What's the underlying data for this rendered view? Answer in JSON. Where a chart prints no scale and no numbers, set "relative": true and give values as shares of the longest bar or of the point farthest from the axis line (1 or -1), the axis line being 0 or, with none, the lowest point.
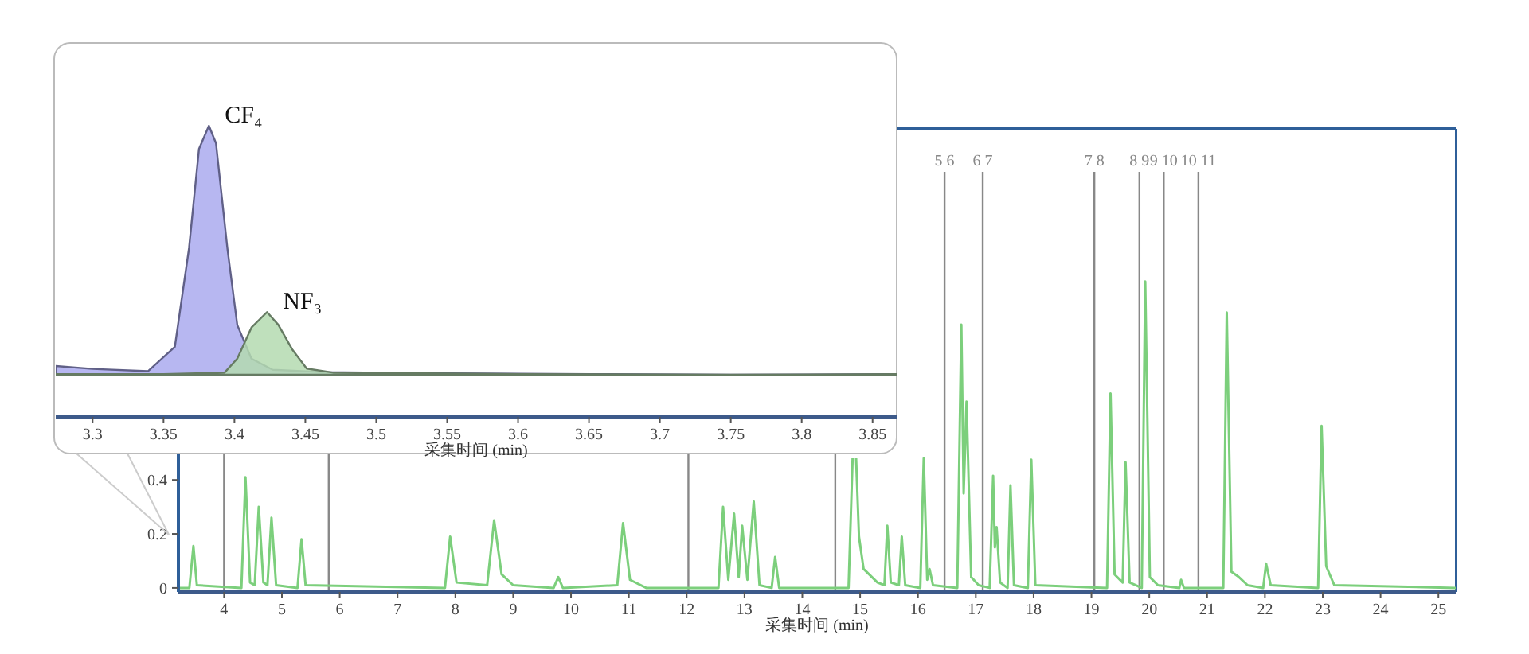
{
  "chart_data": [
    {
      "type": "area",
      "relative": true,
      "xlabel": "采集时间 (min)",
      "xlim": [
        3.274,
        3.867
      ],
      "xticks": [
        3.3,
        3.35,
        3.4,
        3.45,
        3.5,
        3.55,
        3.6,
        3.65,
        3.7,
        3.75,
        3.8,
        3.85
      ],
      "series": [
        {
          "name": "CF₄",
          "color": "#aaaaee",
          "x": [
            3.274,
            3.3,
            3.339,
            3.358,
            3.368,
            3.375,
            3.382,
            3.387,
            3.395,
            3.402,
            3.412,
            3.427,
            3.462,
            3.55,
            3.65,
            3.75,
            3.867
          ],
          "values": [
            0.175,
            0.165,
            0.157,
            0.241,
            0.58,
            0.92,
            1,
            0.94,
            0.58,
            0.316,
            0.2,
            0.162,
            0.154,
            0.15,
            0.147,
            0.145,
            0.147
          ]
        },
        {
          "name": "NF₃",
          "color": "#b4dab0",
          "x": [
            3.274,
            3.35,
            3.393,
            3.402,
            3.412,
            3.423,
            3.431,
            3.441,
            3.451,
            3.47,
            3.6,
            3.75,
            3.867
          ],
          "values": [
            0.147,
            0.147,
            0.152,
            0.2,
            0.307,
            0.36,
            0.316,
            0.23,
            0.166,
            0.152,
            0.147,
            0.145,
            0.147
          ]
        }
      ]
    },
    {
      "type": "line",
      "xlabel": "采集时间 (min)",
      "xlim": [
        3.21,
        25.3
      ],
      "xticks": [
        4,
        5,
        6,
        7,
        8,
        9,
        10,
        11,
        12,
        13,
        14,
        15,
        16,
        17,
        18,
        19,
        20,
        21,
        22,
        23,
        24,
        25
      ],
      "ylim": [
        -0.015,
        1.7
      ],
      "yticks": [
        0,
        0.2,
        0.4
      ],
      "annotations": [
        "5 6",
        "6 7",
        "7 8",
        "8 9",
        "9 10",
        "10 11"
      ],
      "ref_lines": [
        {
          "axis": "x",
          "value": 4.0,
          "label": null
        },
        {
          "axis": "x",
          "value": 5.81,
          "label": null
        },
        {
          "axis": "x",
          "value": 12.03,
          "label": null
        },
        {
          "axis": "x",
          "value": 14.57,
          "label": null
        },
        {
          "axis": "x",
          "value": 16.46
        },
        {
          "axis": "x",
          "value": 17.12
        },
        {
          "axis": "x",
          "value": 19.05
        },
        {
          "axis": "x",
          "value": 19.83
        },
        {
          "axis": "x",
          "value": 20.25
        },
        {
          "axis": "x",
          "value": 20.85
        }
      ],
      "series": [
        {
          "color": "#7ccf7c",
          "x": [
            3.21,
            3.4,
            3.47,
            3.53,
            4.3,
            4.37,
            4.45,
            4.53,
            4.6,
            4.68,
            4.75,
            4.82,
            4.9,
            5.27,
            5.34,
            5.41,
            7.82,
            7.91,
            8.02,
            8.55,
            8.67,
            8.8,
            9.0,
            9.7,
            9.78,
            9.86,
            10.8,
            10.9,
            11.02,
            11.3,
            12.55,
            12.63,
            12.72,
            12.82,
            12.9,
            12.96,
            13.05,
            13.16,
            13.26,
            13.47,
            13.53,
            13.6,
            14.8,
            14.87,
            14.9,
            14.93,
            14.98,
            15.06,
            15.3,
            15.42,
            15.47,
            15.53,
            15.67,
            15.72,
            15.78,
            16.04,
            16.1,
            16.16,
            16.2,
            16.26,
            16.68,
            16.75,
            16.79,
            16.84,
            16.92,
            17.05,
            17.24,
            17.3,
            17.33,
            17.36,
            17.42,
            17.55,
            17.6,
            17.66,
            17.9,
            17.96,
            18.03,
            19.27,
            19.33,
            19.4,
            19.54,
            19.59,
            19.66,
            19.87,
            19.93,
            20.01,
            20.15,
            20.52,
            20.55,
            20.6,
            21.28,
            21.34,
            21.42,
            21.55,
            21.7,
            21.97,
            22.02,
            22.1,
            22.92,
            22.98,
            23.06,
            23.2,
            25.3
          ],
          "values": [
            0,
            0,
            0.155,
            0.01,
            0,
            0.41,
            0.02,
            0.01,
            0.3,
            0.02,
            0.01,
            0.26,
            0.01,
            0,
            0.18,
            0.01,
            0,
            0.19,
            0.02,
            0.01,
            0.25,
            0.05,
            0.01,
            0,
            0.04,
            0,
            0.01,
            0.24,
            0.03,
            0,
            0,
            0.3,
            0.03,
            0.275,
            0.04,
            0.23,
            0.03,
            0.32,
            0.01,
            0,
            0.115,
            0,
            0,
            0.48,
            null,
            0.48,
            0.19,
            0.07,
            0.02,
            0.01,
            0.23,
            0.02,
            0.01,
            0.19,
            0.01,
            0,
            0.48,
            0.03,
            0.07,
            0.01,
            0,
            0.975,
            0.35,
            0.69,
            0.04,
            0.01,
            0,
            0.415,
            0.15,
            0.225,
            0.02,
            0,
            0.38,
            0.01,
            0,
            0.475,
            0.01,
            0,
            0.72,
            0.05,
            0.02,
            0.465,
            0.02,
            0,
            1.135,
            0.04,
            0.01,
            0,
            0.03,
            0,
            0,
            1.02,
            0.06,
            0.04,
            0.01,
            0,
            0.09,
            0.01,
            0,
            0.6,
            0.08,
            0.01,
            0
          ]
        }
      ]
    }
  ]
}
